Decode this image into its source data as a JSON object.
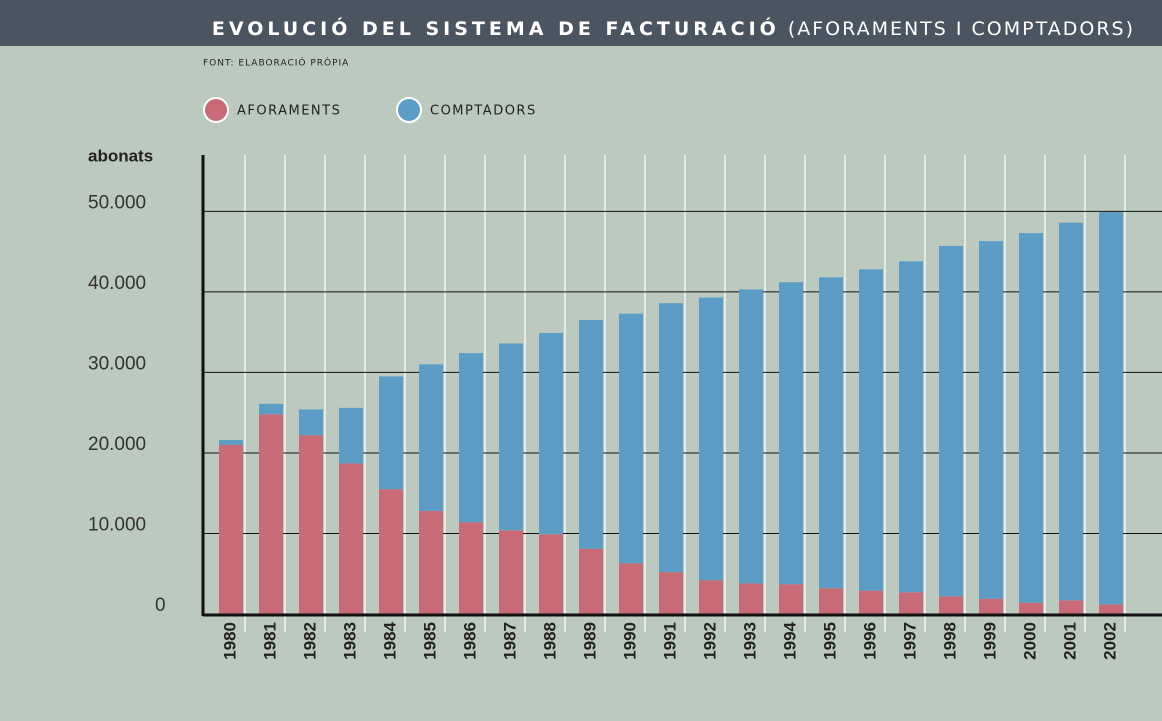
{
  "chart_data": {
    "type": "bar",
    "stacked": true,
    "title": "EVOLUCIÓ DEL SISTEMA DE FACTURACIÓ",
    "title_suffix": "(AFORAMENTS I COMPTADORS)",
    "subtitle": "FONT: ELABORACIÓ PRÒPIA",
    "y_label": "abonats",
    "categories": [
      "1980",
      "1981",
      "1982",
      "1983",
      "1984",
      "1985",
      "1986",
      "1987",
      "1988",
      "1989",
      "1990",
      "1991",
      "1992",
      "1993",
      "1994",
      "1995",
      "1996",
      "1997",
      "1998",
      "1999",
      "2000",
      "2001",
      "2002"
    ],
    "series": [
      {
        "name": "AFORAMENTS",
        "color": "#c86b77",
        "values": [
          21000,
          24800,
          22200,
          18700,
          15500,
          12800,
          11400,
          10400,
          9900,
          8100,
          6300,
          5200,
          4200,
          3800,
          3700,
          3200,
          2900,
          2700,
          2200,
          1900,
          1400,
          1700,
          1200
        ]
      },
      {
        "name": "COMPTADORS",
        "color": "#5c9dc5",
        "values": [
          600,
          1300,
          3200,
          6900,
          14000,
          18200,
          21000,
          23200,
          25000,
          28400,
          31000,
          33400,
          35100,
          36500,
          37500,
          38600,
          39900,
          41100,
          43500,
          44400,
          45900,
          46900,
          48700
        ]
      }
    ],
    "ylim": [
      0,
      57000
    ],
    "yticks": [
      0,
      {
        "value": 10000,
        "label": "10.000"
      },
      {
        "value": 20000,
        "label": "20.000"
      },
      {
        "value": 30000,
        "label": "30.000"
      },
      {
        "value": 40000,
        "label": "40.000"
      },
      {
        "value": 50000,
        "label": "50.000"
      }
    ],
    "grid": true
  }
}
